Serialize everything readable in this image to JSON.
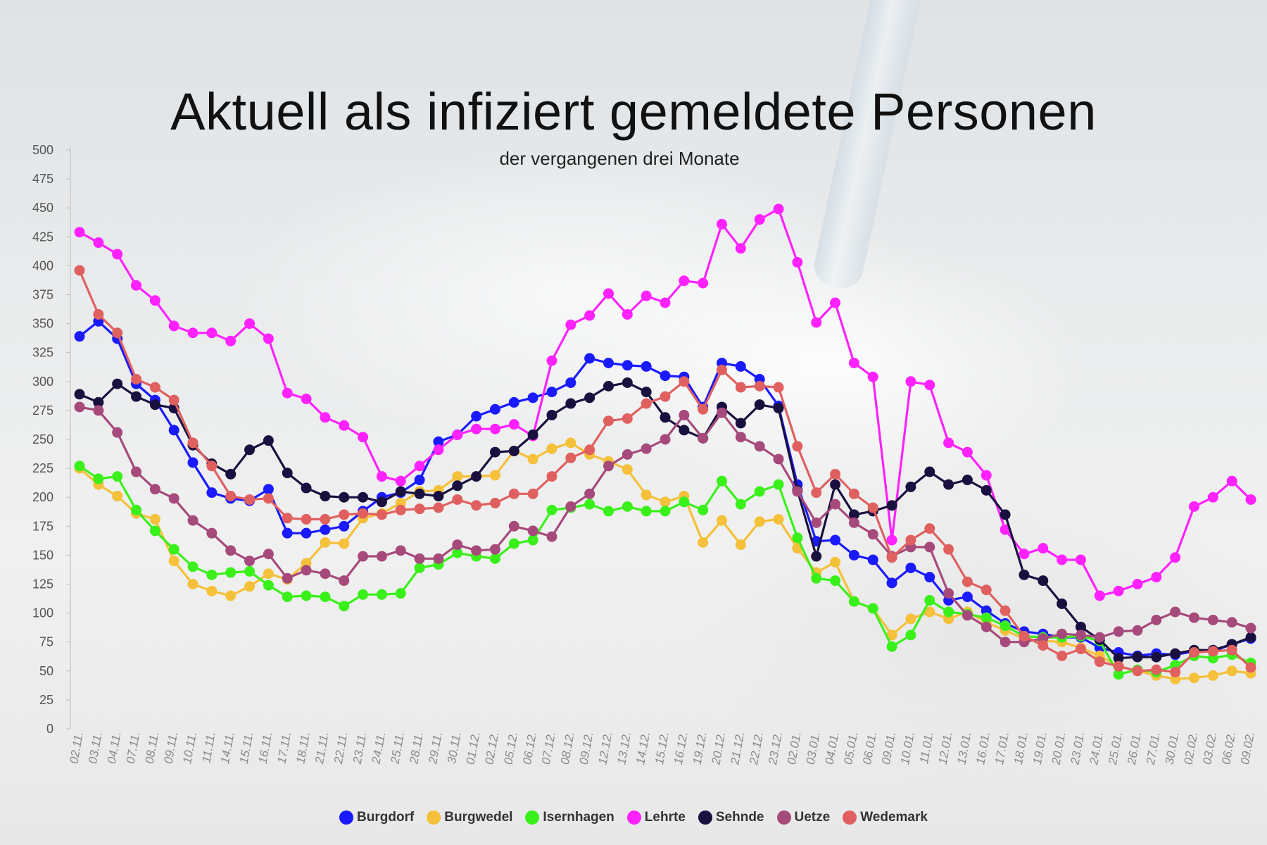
{
  "chart_data": {
    "type": "line",
    "title": "Aktuell als infiziert gemeldete Personen",
    "subtitle": "der vergangenen drei Monate",
    "xlabel": "",
    "ylabel": "",
    "ylim": [
      0,
      500
    ],
    "yticks": [
      0,
      25,
      50,
      75,
      100,
      125,
      150,
      175,
      200,
      225,
      250,
      275,
      300,
      325,
      350,
      375,
      400,
      425,
      450,
      475,
      500
    ],
    "grid": false,
    "legend_position": "bottom",
    "categories": [
      "02.11.",
      "03.11.",
      "04.11.",
      "07.11.",
      "08.11.",
      "09.11.",
      "10.11.",
      "11.11.",
      "14.11.",
      "15.11.",
      "16.11.",
      "17.11.",
      "18.11.",
      "21.11.",
      "22.11.",
      "23.11.",
      "24.11.",
      "25.11.",
      "28.11.",
      "29.11.",
      "30.11.",
      "01.12.",
      "02.12.",
      "05.12.",
      "06.12.",
      "07.12.",
      "08.12.",
      "09.12.",
      "12.12.",
      "13.12.",
      "14.12.",
      "15.12.",
      "16.12.",
      "19.12.",
      "20.12.",
      "21.12.",
      "22.12.",
      "23.12.",
      "02.01.",
      "03.01.",
      "04.01.",
      "05.01.",
      "06.01.",
      "09.01.",
      "10.01.",
      "11.01.",
      "12.01.",
      "13.01.",
      "16.01.",
      "17.01.",
      "18.01.",
      "19.01.",
      "20.01.",
      "23.01.",
      "24.01.",
      "25.01.",
      "26.01.",
      "27.01.",
      "30.01.",
      "02.02.",
      "03.02.",
      "06.02.",
      "09.02."
    ],
    "series": [
      {
        "name": "Burgdorf",
        "color": "#1a1aff",
        "values": [
          339,
          352,
          337,
          298,
          284,
          258,
          230,
          204,
          199,
          197,
          207,
          169,
          169,
          172,
          175,
          188,
          200,
          204,
          215,
          248,
          254,
          270,
          276,
          282,
          286,
          291,
          299,
          320,
          316,
          314,
          313,
          305,
          304,
          278,
          316,
          313,
          302,
          279,
          211,
          162,
          163,
          150,
          146,
          126,
          139,
          131,
          111,
          114,
          102,
          91,
          84,
          82,
          79,
          79,
          70,
          66,
          63,
          65,
          64,
          67,
          67,
          73,
          78
        ]
      },
      {
        "name": "Burgwedel",
        "color": "#f5c03a",
        "values": [
          225,
          211,
          201,
          186,
          181,
          145,
          125,
          119,
          115,
          123,
          134,
          129,
          143,
          161,
          160,
          182,
          186,
          195,
          205,
          206,
          218,
          218,
          219,
          240,
          233,
          242,
          247,
          237,
          231,
          224,
          202,
          196,
          201,
          161,
          180,
          159,
          179,
          181,
          156,
          135,
          144,
          110,
          104,
          81,
          95,
          101,
          95,
          101,
          92,
          85,
          78,
          76,
          75,
          70,
          63,
          54,
          50,
          46,
          43,
          44,
          46,
          50,
          48
        ]
      },
      {
        "name": "Isernhagen",
        "color": "#3af01a",
        "values": [
          227,
          216,
          218,
          189,
          171,
          155,
          140,
          133,
          135,
          136,
          124,
          114,
          115,
          114,
          106,
          116,
          116,
          117,
          139,
          142,
          152,
          149,
          147,
          160,
          163,
          189,
          191,
          194,
          188,
          192,
          188,
          188,
          196,
          189,
          214,
          194,
          205,
          211,
          165,
          130,
          128,
          110,
          104,
          71,
          81,
          111,
          101,
          99,
          96,
          89,
          80,
          79,
          79,
          80,
          76,
          47,
          51,
          49,
          55,
          63,
          61,
          64,
          57
        ]
      },
      {
        "name": "Lehrte",
        "color": "#ff22ff",
        "values": [
          429,
          420,
          410,
          383,
          370,
          348,
          342,
          342,
          335,
          350,
          337,
          290,
          285,
          269,
          262,
          252,
          218,
          214,
          227,
          241,
          254,
          259,
          259,
          263,
          253,
          318,
          349,
          357,
          376,
          358,
          374,
          368,
          387,
          385,
          436,
          415,
          440,
          449,
          403,
          351,
          368,
          316,
          304,
          163,
          300,
          297,
          247,
          239,
          219,
          172,
          151,
          156,
          146,
          146,
          115,
          119,
          125,
          131,
          148,
          192,
          200,
          214,
          198
        ]
      },
      {
        "name": "Sehnde",
        "color": "#1a1040",
        "values": [
          289,
          282,
          298,
          287,
          280,
          277,
          245,
          229,
          220,
          241,
          249,
          221,
          208,
          201,
          200,
          200,
          196,
          205,
          203,
          201,
          210,
          218,
          239,
          240,
          254,
          271,
          281,
          286,
          296,
          299,
          291,
          269,
          258,
          251,
          278,
          264,
          280,
          277,
          206,
          149,
          211,
          185,
          188,
          193,
          209,
          222,
          211,
          215,
          206,
          185,
          133,
          128,
          108,
          88,
          77,
          61,
          62,
          62,
          65,
          68,
          68,
          73,
          79
        ]
      },
      {
        "name": "Uetze",
        "color": "#a64a7b",
        "values": [
          278,
          275,
          256,
          222,
          207,
          199,
          180,
          169,
          154,
          145,
          151,
          130,
          137,
          134,
          128,
          149,
          149,
          154,
          147,
          147,
          159,
          154,
          155,
          175,
          171,
          166,
          192,
          203,
          227,
          237,
          242,
          250,
          271,
          251,
          273,
          252,
          244,
          233,
          205,
          178,
          194,
          178,
          168,
          149,
          157,
          157,
          117,
          98,
          88,
          75,
          75,
          78,
          82,
          81,
          79,
          84,
          85,
          94,
          101,
          96,
          94,
          92,
          87
        ]
      },
      {
        "name": "Wedemark",
        "color": "#e06060",
        "values": [
          396,
          358,
          342,
          302,
          295,
          284,
          247,
          227,
          201,
          198,
          199,
          182,
          181,
          181,
          185,
          186,
          185,
          189,
          190,
          191,
          198,
          193,
          195,
          203,
          203,
          218,
          234,
          241,
          266,
          268,
          281,
          287,
          300,
          276,
          310,
          295,
          296,
          295,
          244,
          204,
          220,
          203,
          191,
          148,
          163,
          173,
          155,
          127,
          120,
          102,
          80,
          72,
          63,
          69,
          58,
          54,
          50,
          51,
          49,
          66,
          67,
          68,
          53
        ]
      }
    ]
  }
}
